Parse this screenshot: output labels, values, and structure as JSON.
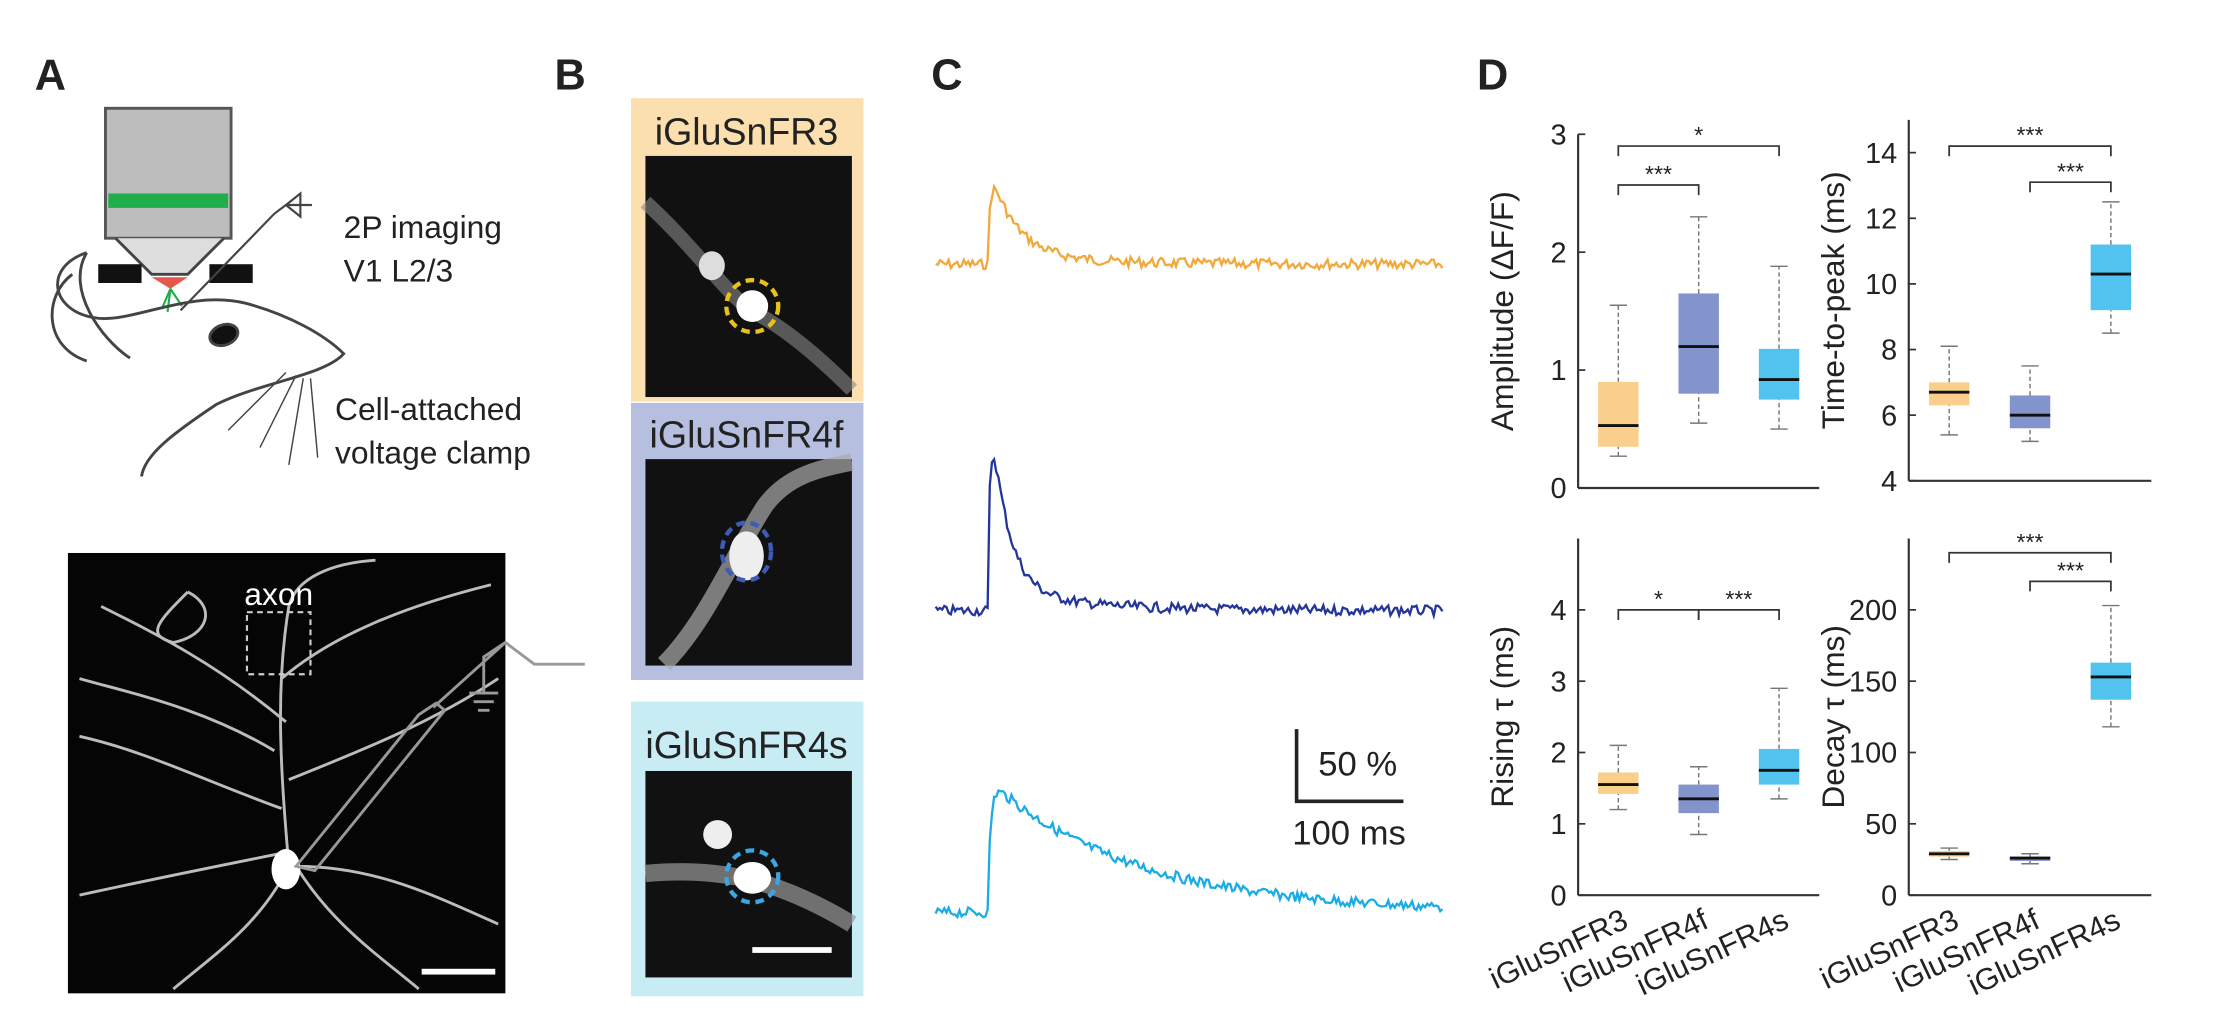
{
  "panels": {
    "A": {
      "label": "A",
      "texts": [
        "2P imaging",
        "V1 L2/3",
        "Cell-attached",
        "voltage clamp"
      ],
      "axon_label": "axon"
    },
    "B": {
      "label": "B",
      "titles": [
        "iGluSnFR3",
        "iGluSnFR4f",
        "iGluSnFR4s"
      ]
    },
    "C": {
      "label": "C",
      "scale_y": "50 %",
      "scale_x": "100 ms"
    },
    "D": {
      "label": "D"
    }
  },
  "chart_data": [
    {
      "type": "box",
      "ylabel": "Amplitude (ΔF/F)",
      "ylim": [
        0,
        3
      ],
      "yticks": [
        0,
        1,
        2,
        3
      ],
      "colors": [
        "#f9cf8b",
        "#8393cc",
        "#52c3ef"
      ],
      "stats": [
        {
          "min": 0.27,
          "q1": 0.35,
          "median": 0.53,
          "q3": 0.9,
          "max": 1.55
        },
        {
          "min": 0.55,
          "q1": 0.8,
          "median": 1.2,
          "q3": 1.65,
          "max": 2.3
        },
        {
          "min": 0.5,
          "q1": 0.75,
          "median": 0.92,
          "q3": 1.18,
          "max": 1.88
        }
      ],
      "significance": [
        {
          "from": 0,
          "to": 1,
          "level": 2.57,
          "label": "***"
        },
        {
          "from": 0,
          "to": 2,
          "level": 2.9,
          "label": "*"
        }
      ]
    },
    {
      "type": "box",
      "ylabel": "Time-to-peak (ms)",
      "ylim": [
        4,
        15
      ],
      "yticks": [
        4,
        6,
        8,
        10,
        12,
        14
      ],
      "colors": [
        "#f9cf8b",
        "#8393cc",
        "#52c3ef"
      ],
      "stats": [
        {
          "min": 5.4,
          "q1": 6.3,
          "median": 6.7,
          "q3": 7.0,
          "max": 8.1
        },
        {
          "min": 5.2,
          "q1": 5.6,
          "median": 6.0,
          "q3": 6.6,
          "max": 7.5
        },
        {
          "min": 8.5,
          "q1": 9.2,
          "median": 10.3,
          "q3": 11.2,
          "max": 12.5
        }
      ],
      "significance": [
        {
          "from": 0,
          "to": 2,
          "level": 14.2,
          "label": "***"
        },
        {
          "from": 1,
          "to": 2,
          "level": 13.1,
          "label": "***"
        }
      ]
    },
    {
      "type": "box",
      "ylabel": "Rising τ (ms)",
      "ylim": [
        0,
        5
      ],
      "yticks": [
        0,
        1,
        2,
        3,
        4
      ],
      "colors": [
        "#f9cf8b",
        "#8393cc",
        "#52c3ef"
      ],
      "categories": [
        "iGluSnFR3",
        "iGluSnFR4f",
        "iGluSnFR4s"
      ],
      "stats": [
        {
          "min": 1.2,
          "q1": 1.42,
          "median": 1.55,
          "q3": 1.72,
          "max": 2.1
        },
        {
          "min": 0.85,
          "q1": 1.15,
          "median": 1.35,
          "q3": 1.55,
          "max": 1.8
        },
        {
          "min": 1.35,
          "q1": 1.55,
          "median": 1.75,
          "q3": 2.05,
          "max": 2.9
        }
      ],
      "significance": [
        {
          "from": 0,
          "to": 1,
          "level": 4.0,
          "label": "*"
        },
        {
          "from": 1,
          "to": 2,
          "level": 4.0,
          "label": "***"
        }
      ]
    },
    {
      "type": "box",
      "ylabel": "Decay τ (ms)",
      "ylim": [
        0,
        250
      ],
      "yticks": [
        0,
        50,
        100,
        150,
        200
      ],
      "colors": [
        "#f9cf8b",
        "#8393cc",
        "#52c3ef"
      ],
      "categories": [
        "iGluSnFR3",
        "iGluSnFR4f",
        "iGluSnFR4s"
      ],
      "stats": [
        {
          "min": 25,
          "q1": 27,
          "median": 29,
          "q3": 31,
          "max": 33
        },
        {
          "min": 22,
          "q1": 24,
          "median": 26,
          "q3": 27,
          "max": 29
        },
        {
          "min": 118,
          "q1": 137,
          "median": 153,
          "q3": 163,
          "max": 203
        }
      ],
      "significance": [
        {
          "from": 0,
          "to": 2,
          "level": 240,
          "label": "***"
        },
        {
          "from": 1,
          "to": 2,
          "level": 220,
          "label": "***"
        }
      ]
    }
  ]
}
